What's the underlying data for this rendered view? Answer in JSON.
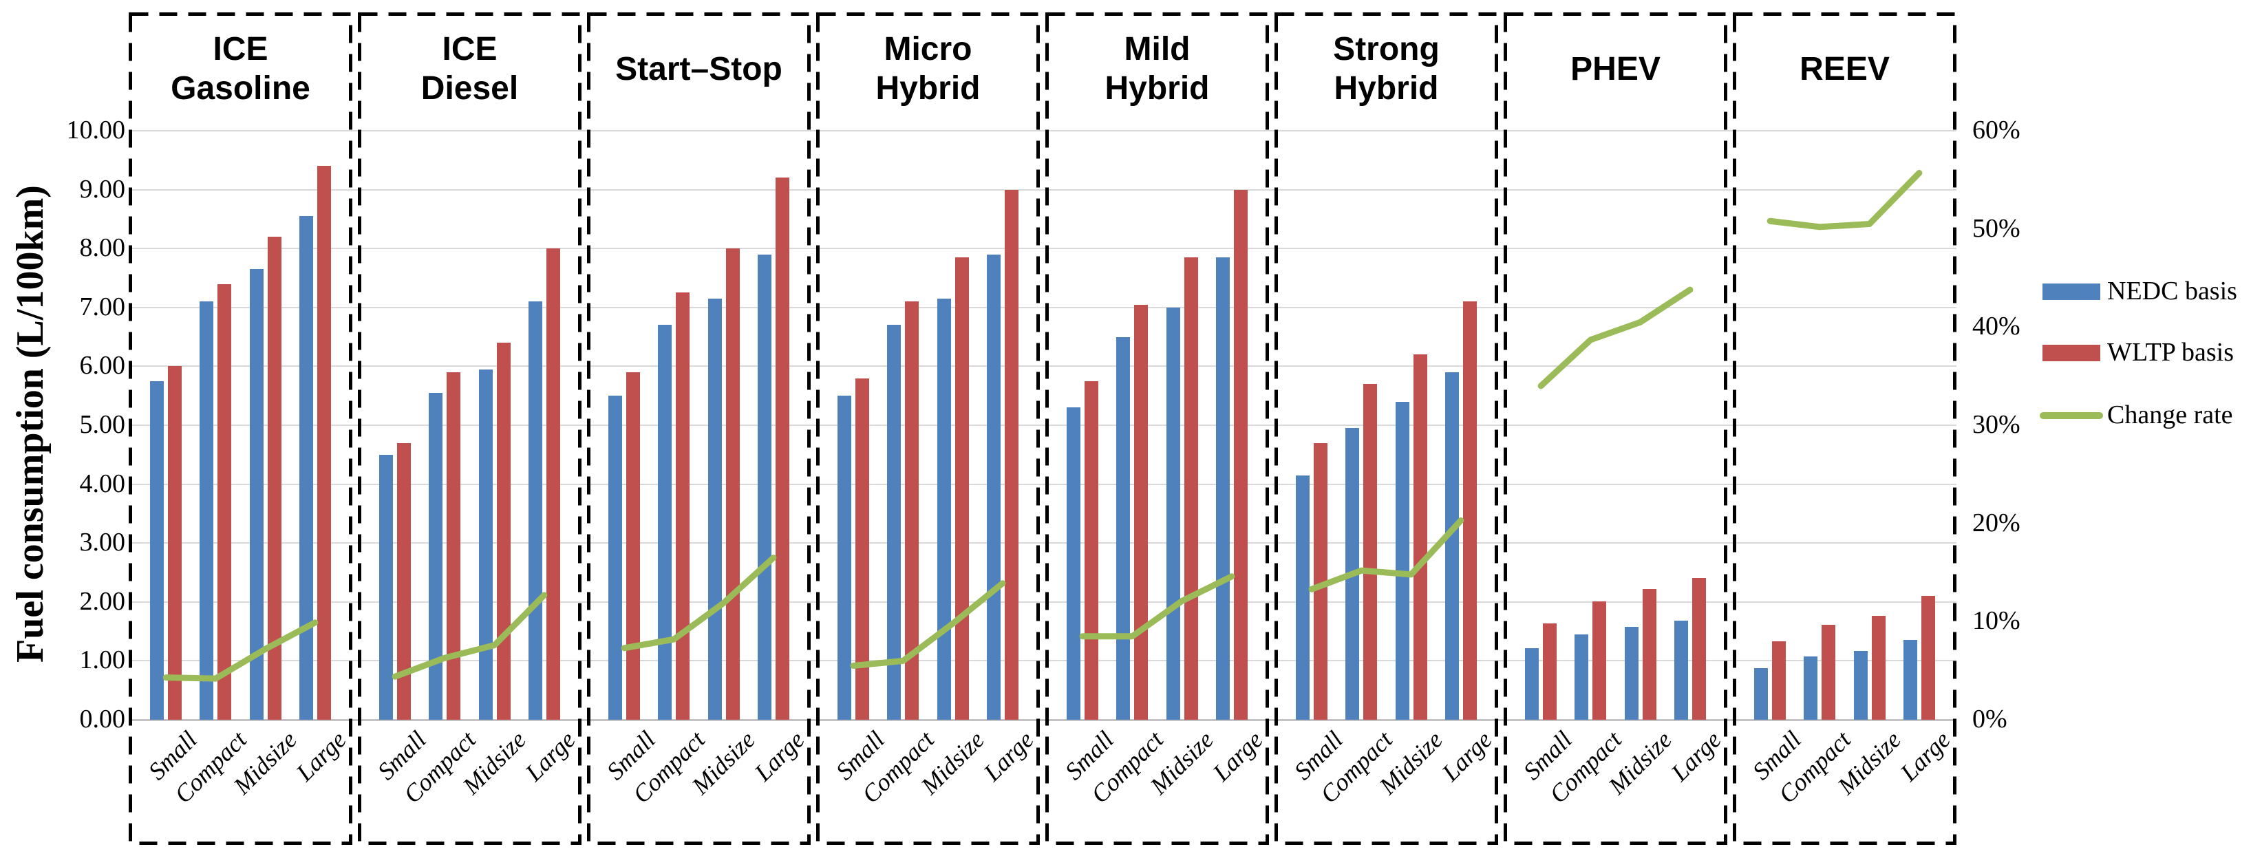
{
  "chart_data": {
    "type": "bar+line",
    "categories": [
      "Small",
      "Compact",
      "Midsize",
      "Large"
    ],
    "y_axis": {
      "title": "Fuel consumption (L/100km)",
      "min": 0,
      "max": 10,
      "grid": true,
      "tick_labels": [
        "0.00",
        "1.00",
        "2.00",
        "3.00",
        "4.00",
        "5.00",
        "6.00",
        "7.00",
        "8.00",
        "9.00",
        "10.00"
      ]
    },
    "y2_axis": {
      "min": 0,
      "max": 60,
      "unit": "%",
      "tick_labels": [
        "0%",
        "10%",
        "20%",
        "30%",
        "40%",
        "50%",
        "60%"
      ]
    },
    "series": [
      {
        "name": "NEDC basis",
        "type": "bar",
        "color": "#4F81BD"
      },
      {
        "name": "WLTP basis",
        "type": "bar",
        "color": "#C0504D"
      },
      {
        "name": "Change rate",
        "type": "line",
        "color": "#9BBB59",
        "axis": "y2"
      }
    ],
    "legend_position": "right",
    "panels": [
      {
        "title_lines": [
          "ICE",
          "Gasoline"
        ],
        "nedc": [
          5.75,
          7.1,
          7.65,
          8.55
        ],
        "wltp": [
          6.0,
          7.4,
          8.2,
          9.4
        ],
        "change_rate_pct": [
          4.3,
          4.2,
          7.2,
          9.9
        ]
      },
      {
        "title_lines": [
          "ICE",
          "Diesel"
        ],
        "nedc": [
          4.5,
          5.55,
          5.95,
          7.1
        ],
        "wltp": [
          4.7,
          5.9,
          6.4,
          8.0
        ],
        "change_rate_pct": [
          4.4,
          6.3,
          7.6,
          12.7
        ]
      },
      {
        "title_lines": [
          "Start–Stop"
        ],
        "nedc": [
          5.5,
          6.7,
          7.15,
          7.9
        ],
        "wltp": [
          5.9,
          7.25,
          8.0,
          9.2
        ],
        "change_rate_pct": [
          7.3,
          8.2,
          11.9,
          16.5
        ]
      },
      {
        "title_lines": [
          "Micro",
          "Hybrid"
        ],
        "nedc": [
          5.5,
          6.7,
          7.15,
          7.9
        ],
        "wltp": [
          5.8,
          7.1,
          7.85,
          9.0
        ],
        "change_rate_pct": [
          5.5,
          6.0,
          9.8,
          13.9
        ]
      },
      {
        "title_lines": [
          "Mild",
          "Hybrid"
        ],
        "nedc": [
          5.3,
          6.5,
          7.0,
          7.85
        ],
        "wltp": [
          5.75,
          7.05,
          7.85,
          9.0
        ],
        "change_rate_pct": [
          8.5,
          8.5,
          12.1,
          14.6
        ]
      },
      {
        "title_lines": [
          "Strong",
          "Hybrid"
        ],
        "nedc": [
          4.15,
          4.95,
          5.4,
          5.9
        ],
        "wltp": [
          4.7,
          5.7,
          6.2,
          7.1
        ],
        "change_rate_pct": [
          13.3,
          15.2,
          14.8,
          20.3
        ]
      },
      {
        "title_lines": [
          "PHEV"
        ],
        "nedc": [
          1.22,
          1.45,
          1.58,
          1.68
        ],
        "wltp": [
          1.63,
          2.01,
          2.22,
          2.41
        ],
        "change_rate_pct": [
          34.0,
          38.7,
          40.5,
          43.8
        ]
      },
      {
        "title_lines": [
          "REEV"
        ],
        "nedc": [
          0.88,
          1.07,
          1.17,
          1.35
        ],
        "wltp": [
          1.33,
          1.61,
          1.76,
          2.1
        ],
        "change_rate_pct": [
          50.8,
          50.2,
          50.5,
          55.7
        ]
      }
    ]
  }
}
